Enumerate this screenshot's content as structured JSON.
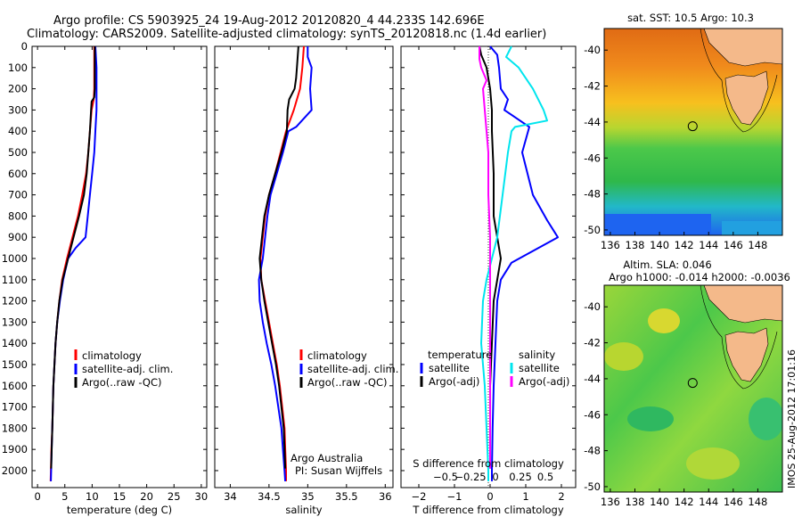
{
  "header": {
    "line1": "Argo profile: CS 5903925_24 19-Aug-2012 20120820_4 44.233S 142.696E",
    "line2": "Climatology: CARS2009. Satellite-adjusted climatology: synTS_20120818.nc (1.4d earlier)"
  },
  "colors": {
    "climatology": "#ff0000",
    "satellite": "#0000ff",
    "argo": "#000000",
    "satellite_salinity_diff": "#00e5ee",
    "argo_salinity_diff": "#ff00ff",
    "land": "#f4b98a"
  },
  "footer_text": {
    "credit1": "Argo Australia",
    "credit2": "PI: Susan Wijffels",
    "stamp": "IMOS 25-Aug-2012 17:01:16"
  },
  "chart_data": [
    {
      "type": "line",
      "id": "temperature_profile",
      "xlabel": "temperature (deg C)",
      "ylabel": "",
      "xlim": [
        -1,
        31
      ],
      "ylim": [
        2080,
        0
      ],
      "xticks": [
        0,
        5,
        10,
        15,
        20,
        25,
        30
      ],
      "yticks": [
        0,
        100,
        200,
        300,
        400,
        500,
        600,
        700,
        800,
        900,
        1000,
        1100,
        1200,
        1300,
        1400,
        1500,
        1600,
        1700,
        1800,
        1900,
        2000
      ],
      "legend": [
        "climatology",
        "satellite-adj. clim.",
        "Argo(..raw -QC)"
      ],
      "series": [
        {
          "name": "climatology",
          "color": "#ff0000",
          "points": [
            [
              10.4,
              0
            ],
            [
              10.4,
              100
            ],
            [
              10.4,
              200
            ],
            [
              10.3,
              250
            ],
            [
              9.9,
              300
            ],
            [
              9.6,
              400
            ],
            [
              9.3,
              500
            ],
            [
              8.9,
              600
            ],
            [
              8.2,
              700
            ],
            [
              7.4,
              800
            ],
            [
              6.4,
              900
            ],
            [
              5.4,
              1000
            ],
            [
              4.5,
              1100
            ],
            [
              4.0,
              1200
            ],
            [
              3.6,
              1300
            ],
            [
              3.3,
              1400
            ],
            [
              3.1,
              1500
            ],
            [
              2.9,
              1600
            ],
            [
              2.8,
              1700
            ],
            [
              2.7,
              1800
            ],
            [
              2.55,
              1900
            ],
            [
              2.45,
              2000
            ],
            [
              2.4,
              2050
            ]
          ]
        },
        {
          "name": "satellite-adj. clim.",
          "color": "#0000ff",
          "points": [
            [
              10.6,
              0
            ],
            [
              10.8,
              100
            ],
            [
              10.8,
              200
            ],
            [
              10.8,
              300
            ],
            [
              10.6,
              400
            ],
            [
              10.4,
              500
            ],
            [
              10.0,
              600
            ],
            [
              9.6,
              700
            ],
            [
              9.2,
              800
            ],
            [
              8.8,
              900
            ],
            [
              7.0,
              950
            ],
            [
              5.6,
              1000
            ],
            [
              4.7,
              1100
            ],
            [
              4.1,
              1200
            ],
            [
              3.6,
              1300
            ],
            [
              3.3,
              1400
            ],
            [
              3.1,
              1500
            ],
            [
              2.9,
              1600
            ],
            [
              2.8,
              1700
            ],
            [
              2.7,
              1800
            ],
            [
              2.6,
              1900
            ],
            [
              2.5,
              2000
            ],
            [
              2.45,
              2050
            ]
          ]
        },
        {
          "name": "Argo(..raw -QC)",
          "color": "#000000",
          "points": [
            [
              10.5,
              0
            ],
            [
              10.5,
              100
            ],
            [
              10.5,
              200
            ],
            [
              10.4,
              240
            ],
            [
              9.9,
              260
            ],
            [
              9.8,
              300
            ],
            [
              9.6,
              400
            ],
            [
              9.3,
              500
            ],
            [
              9.0,
              600
            ],
            [
              8.5,
              700
            ],
            [
              7.6,
              800
            ],
            [
              6.6,
              900
            ],
            [
              5.6,
              1000
            ],
            [
              4.6,
              1100
            ],
            [
              4.0,
              1200
            ],
            [
              3.6,
              1300
            ],
            [
              3.3,
              1400
            ],
            [
              3.1,
              1500
            ],
            [
              2.9,
              1600
            ],
            [
              2.8,
              1700
            ],
            [
              2.7,
              1800
            ],
            [
              2.6,
              1900
            ],
            [
              2.5,
              1990
            ]
          ]
        }
      ]
    },
    {
      "type": "line",
      "id": "salinity_profile",
      "xlabel": "salinity",
      "ylabel": "",
      "xlim": [
        33.8,
        36.1
      ],
      "ylim": [
        2080,
        0
      ],
      "xticks": [
        34,
        34.5,
        35,
        35.5,
        36
      ],
      "xticklabels": [
        "34",
        "34.5",
        "35",
        "35.5",
        "36"
      ],
      "legend": [
        "climatology",
        "satellite-adj. clim.",
        "Argo(..raw -QC)"
      ],
      "series": [
        {
          "name": "climatology",
          "color": "#ff0000",
          "points": [
            [
              34.95,
              0
            ],
            [
              34.93,
              100
            ],
            [
              34.9,
              200
            ],
            [
              34.82,
              300
            ],
            [
              34.72,
              400
            ],
            [
              34.65,
              500
            ],
            [
              34.58,
              600
            ],
            [
              34.5,
              700
            ],
            [
              34.45,
              800
            ],
            [
              34.42,
              900
            ],
            [
              34.39,
              1000
            ],
            [
              34.4,
              1100
            ],
            [
              34.45,
              1200
            ],
            [
              34.5,
              1300
            ],
            [
              34.55,
              1400
            ],
            [
              34.6,
              1500
            ],
            [
              34.64,
              1600
            ],
            [
              34.67,
              1700
            ],
            [
              34.7,
              1800
            ],
            [
              34.71,
              1900
            ],
            [
              34.72,
              2000
            ],
            [
              34.72,
              2050
            ]
          ]
        },
        {
          "name": "satellite-adj. clim.",
          "color": "#0000ff",
          "points": [
            [
              35.0,
              0
            ],
            [
              35.0,
              50
            ],
            [
              35.05,
              100
            ],
            [
              35.03,
              200
            ],
            [
              35.05,
              300
            ],
            [
              34.85,
              380
            ],
            [
              34.75,
              400
            ],
            [
              34.68,
              500
            ],
            [
              34.6,
              600
            ],
            [
              34.52,
              700
            ],
            [
              34.48,
              800
            ],
            [
              34.45,
              900
            ],
            [
              34.42,
              1000
            ],
            [
              34.37,
              1100
            ],
            [
              34.38,
              1200
            ],
            [
              34.42,
              1300
            ],
            [
              34.47,
              1400
            ],
            [
              34.53,
              1500
            ],
            [
              34.58,
              1600
            ],
            [
              34.62,
              1700
            ],
            [
              34.66,
              1800
            ],
            [
              34.68,
              1900
            ],
            [
              34.7,
              2000
            ],
            [
              34.71,
              2050
            ]
          ]
        },
        {
          "name": "Argo(..raw -QC)",
          "color": "#000000",
          "points": [
            [
              34.88,
              0
            ],
            [
              34.86,
              100
            ],
            [
              34.85,
              150
            ],
            [
              34.83,
              200
            ],
            [
              34.76,
              250
            ],
            [
              34.74,
              300
            ],
            [
              34.73,
              400
            ],
            [
              34.66,
              500
            ],
            [
              34.58,
              600
            ],
            [
              34.5,
              700
            ],
            [
              34.44,
              800
            ],
            [
              34.41,
              900
            ],
            [
              34.38,
              1000
            ],
            [
              34.4,
              1100
            ],
            [
              34.44,
              1200
            ],
            [
              34.49,
              1300
            ],
            [
              34.54,
              1400
            ],
            [
              34.59,
              1500
            ],
            [
              34.63,
              1600
            ],
            [
              34.66,
              1700
            ],
            [
              34.69,
              1800
            ],
            [
              34.7,
              1900
            ],
            [
              34.71,
              1990
            ]
          ]
        }
      ]
    },
    {
      "type": "line",
      "id": "difference_profile",
      "xlabel": "T difference from climatology",
      "top_label": "S difference from climatology",
      "xlim": [
        -2.5,
        2.4
      ],
      "ylim": [
        2080,
        0
      ],
      "xticks": [
        -2,
        -1,
        0,
        1,
        2
      ],
      "xticklabels": [
        "−2",
        "−1",
        "0",
        "1",
        "2"
      ],
      "top_ticklabels": [
        "−0.5",
        "−0.25",
        "0",
        "0.25",
        "0.5"
      ],
      "legend_groups": [
        {
          "title": "temperature",
          "entries": [
            "satellite",
            "Argo(-adj)"
          ]
        },
        {
          "title": "salinity",
          "entries": [
            "satellite",
            "Argo(-adj)"
          ]
        }
      ],
      "series": [
        {
          "name": "temperature satellite",
          "color": "#0000ff",
          "points": [
            [
              0.0,
              0
            ],
            [
              0.2,
              40
            ],
            [
              0.25,
              100
            ],
            [
              0.3,
              200
            ],
            [
              0.5,
              250
            ],
            [
              0.4,
              300
            ],
            [
              1.1,
              380
            ],
            [
              0.9,
              500
            ],
            [
              1.2,
              700
            ],
            [
              1.6,
              820
            ],
            [
              1.9,
              900
            ],
            [
              0.6,
              1020
            ],
            [
              0.3,
              1100
            ],
            [
              0.2,
              1200
            ],
            [
              0.15,
              1400
            ],
            [
              0.1,
              1600
            ],
            [
              0.07,
              1800
            ],
            [
              0.05,
              2000
            ],
            [
              0.05,
              2050
            ]
          ]
        },
        {
          "name": "temperature Argo(-adj)",
          "color": "#000000",
          "points": [
            [
              -0.3,
              0
            ],
            [
              -0.25,
              40
            ],
            [
              -0.1,
              100
            ],
            [
              0.0,
              200
            ],
            [
              0.05,
              300
            ],
            [
              0.05,
              400
            ],
            [
              0.1,
              600
            ],
            [
              0.1,
              800
            ],
            [
              0.2,
              900
            ],
            [
              0.3,
              1000
            ],
            [
              0.2,
              1100
            ],
            [
              0.1,
              1200
            ],
            [
              0.05,
              1400
            ],
            [
              0.0,
              1600
            ],
            [
              0.0,
              1800
            ],
            [
              0.0,
              1990
            ]
          ]
        },
        {
          "name": "salinity satellite",
          "color": "#00e5ee",
          "points": [
            [
              0.6,
              0
            ],
            [
              0.45,
              50
            ],
            [
              0.8,
              100
            ],
            [
              1.2,
              200
            ],
            [
              1.5,
              300
            ],
            [
              1.6,
              350
            ],
            [
              0.7,
              380
            ],
            [
              0.6,
              400
            ],
            [
              0.5,
              500
            ],
            [
              0.35,
              700
            ],
            [
              0.2,
              900
            ],
            [
              0.05,
              1000
            ],
            [
              -0.1,
              1100
            ],
            [
              -0.2,
              1200
            ],
            [
              -0.25,
              1400
            ],
            [
              -0.15,
              1600
            ],
            [
              -0.1,
              1800
            ],
            [
              -0.05,
              2000
            ],
            [
              -0.05,
              2050
            ]
          ]
        },
        {
          "name": "salinity Argo(-adj)",
          "color": "#ff00ff",
          "points": [
            [
              -0.3,
              0
            ],
            [
              -0.3,
              60
            ],
            [
              -0.25,
              100
            ],
            [
              -0.1,
              160
            ],
            [
              -0.2,
              200
            ],
            [
              -0.15,
              300
            ],
            [
              -0.1,
              400
            ],
            [
              -0.05,
              500
            ],
            [
              -0.05,
              700
            ],
            [
              0.0,
              900
            ],
            [
              0.0,
              1100
            ],
            [
              0.0,
              1300
            ],
            [
              0.0,
              1500
            ],
            [
              0.0,
              1800
            ],
            [
              0.0,
              1990
            ]
          ]
        }
      ]
    },
    {
      "type": "heatmap",
      "id": "sst_map",
      "title": "sat. SST: 10.5 Argo: 10.3",
      "xlim": [
        135.5,
        150
      ],
      "ylim": [
        -50.3,
        -38.8
      ],
      "xticks": [
        136,
        138,
        140,
        142,
        144,
        146,
        148
      ],
      "yticks": [
        -40,
        -42,
        -44,
        -46,
        -48,
        -50
      ],
      "argo_position": {
        "lon": 142.696,
        "lat": -44.233
      }
    },
    {
      "type": "heatmap",
      "id": "sla_map",
      "title": "Altim. SLA: 0.046",
      "subtitle": "Argo h1000: -0.014 h2000: -0.0036",
      "xlim": [
        135.5,
        150
      ],
      "ylim": [
        -50.3,
        -38.8
      ],
      "xticks": [
        136,
        138,
        140,
        142,
        144,
        146,
        148
      ],
      "yticks": [
        -40,
        -42,
        -44,
        -46,
        -48,
        -50
      ],
      "argo_position": {
        "lon": 142.696,
        "lat": -44.233
      }
    }
  ]
}
